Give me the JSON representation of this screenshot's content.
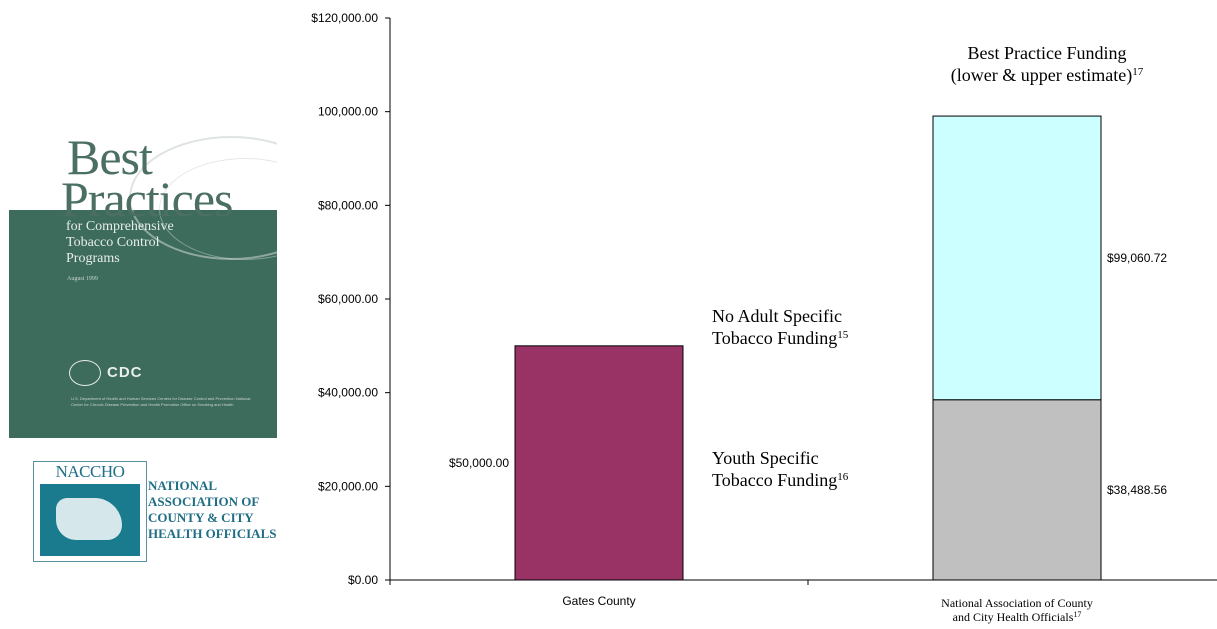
{
  "cover": {
    "title_line1": "Best",
    "title_line2": "Practices",
    "subtitle_lines": [
      "for Comprehensive",
      "Tobacco Control",
      "Programs"
    ],
    "date": "August 1999",
    "agency": "CDC",
    "agency_detail": "U.S. Department of Health and Human Services Centers for Disease Control and Prevention National Center for Chronic Disease Prevention and Health Promotion Office on Smoking and Health"
  },
  "naccho": {
    "acronym": "NACCHO",
    "name_lines": [
      "NATIONAL",
      "ASSOCIATION OF",
      "COUNTY & CITY",
      "HEALTH OFFICIALS"
    ]
  },
  "colors": {
    "gates": "#993366",
    "youth": "#c0c0c0",
    "best_practice": "#ccffff"
  },
  "chart_data": {
    "type": "bar",
    "ylim": [
      0,
      120000
    ],
    "yticks": [
      "$0.00",
      "$20,000.00",
      "$40,000.00",
      "$60,000.00",
      "$80,000.00",
      "100,000.00",
      "$120,000.00"
    ],
    "ytick_values": [
      0,
      20000,
      40000,
      60000,
      80000,
      100000,
      120000
    ],
    "categories": [
      {
        "lines": [
          "Gates County"
        ],
        "sup": ""
      },
      {
        "lines": [
          "National Association of County",
          "and City Health Officials"
        ],
        "sup": "17"
      }
    ],
    "bars": [
      {
        "category": 0,
        "segments": [
          {
            "value": 50000,
            "label": "$50,000.00",
            "color": "#993366",
            "label_side": "left"
          }
        ]
      },
      {
        "category": 1,
        "segments": [
          {
            "value": 38488.56,
            "label": "$38,488.56",
            "color": "#c0c0c0",
            "label_side": "right"
          },
          {
            "value": 99060.72,
            "label": "$99,060.72",
            "color": "#ccffff",
            "label_side": "right",
            "top_only": true
          }
        ]
      }
    ],
    "annotations": [
      {
        "lines": [
          "No Adult Specific",
          "Tobacco Funding"
        ],
        "sup": "15"
      },
      {
        "lines": [
          "Youth Specific",
          "Tobacco Funding"
        ],
        "sup": "16"
      },
      {
        "lines": [
          "Best Practice Funding",
          "(lower & upper estimate)"
        ],
        "sup": "17"
      }
    ]
  }
}
